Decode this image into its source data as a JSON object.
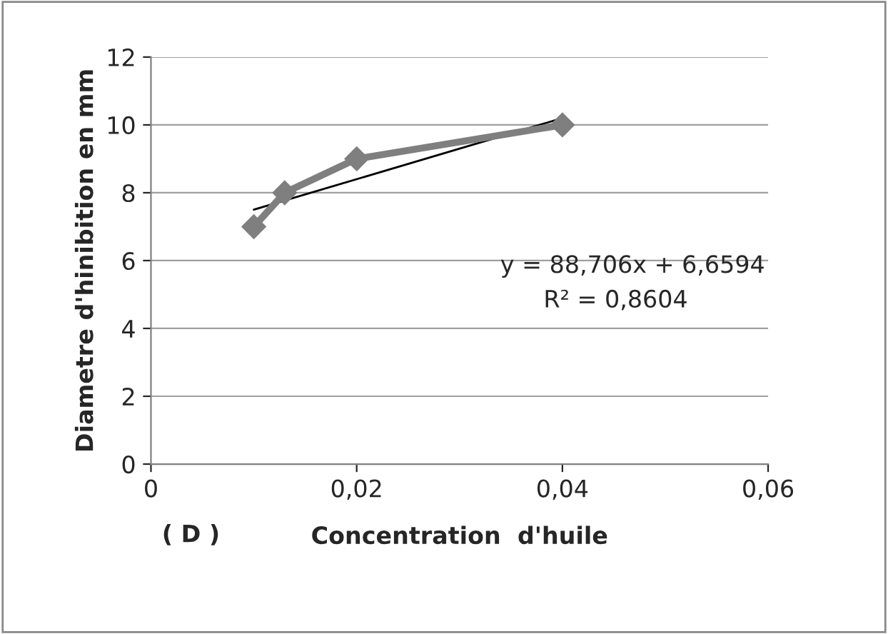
{
  "chart_data": {
    "type": "line",
    "xlabel": "Concentration  d'huile",
    "ylabel": "Diametre d'hinibition en mm",
    "series": [
      {
        "color": "#7f7f7f",
        "x": [
          0.01,
          0.013,
          0.02,
          0.04
        ],
        "values": [
          7,
          8,
          9,
          10
        ],
        "marker": "diamond"
      },
      {
        "color": "#000000",
        "x": [
          0.01,
          0.04
        ],
        "values": [
          7.5,
          10.2
        ],
        "marker": "none"
      }
    ],
    "xlim": [
      0,
      0.06
    ],
    "xticks": [
      0,
      {
        "value": 0.02,
        "label": "0,02"
      },
      {
        "value": 0.04,
        "label": "0,04"
      },
      {
        "value": 0.06,
        "label": "0,06"
      }
    ],
    "ylim": [
      0,
      12
    ],
    "yticks": [
      0,
      2,
      4,
      6,
      8,
      10,
      12
    ],
    "grid": "y",
    "legend": false,
    "annotations": [
      "y = 88,706x + 6,6594",
      "R² = 0,8604",
      "( D )"
    ]
  }
}
